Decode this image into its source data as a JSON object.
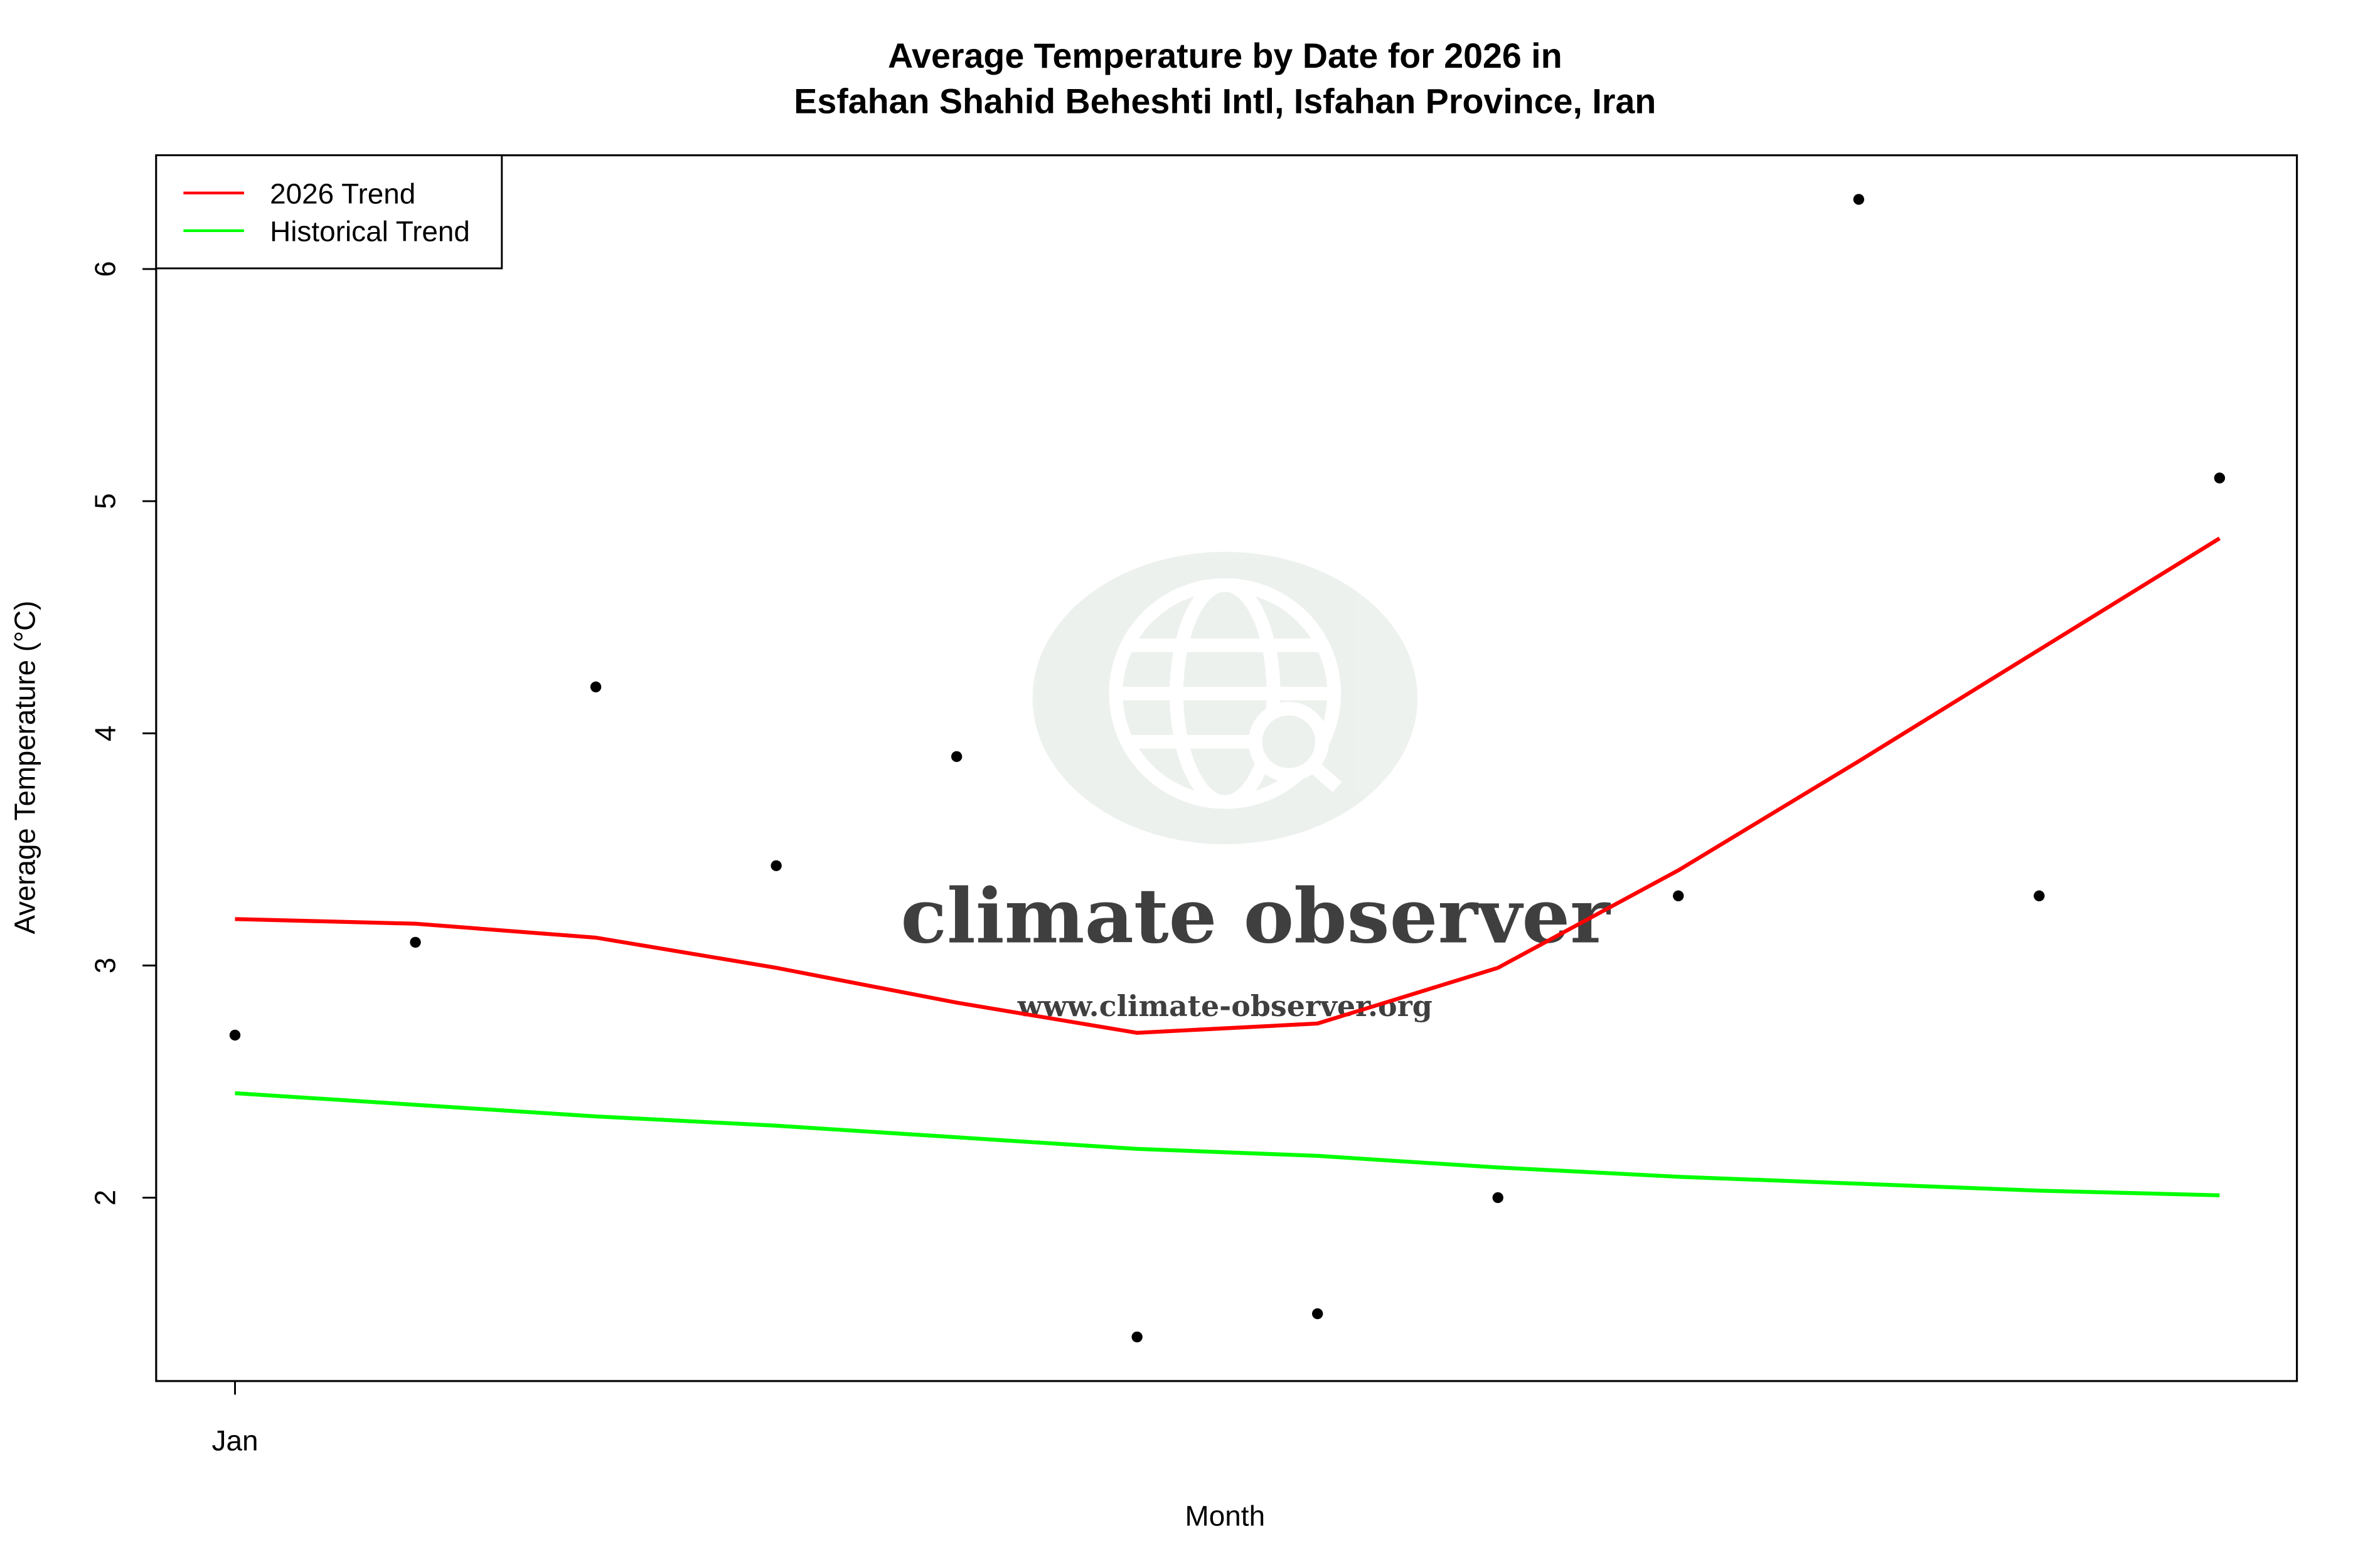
{
  "chart_data": {
    "type": "line",
    "title": "Average Temperature by Date for 2026 in",
    "subtitle": "Esfahan Shahid Beheshti Intl, Isfahan Province, Iran",
    "x_label": "Month",
    "y_label": "Average Temperature (°C)",
    "categories": [
      "Jan",
      null,
      null,
      null,
      null,
      null,
      null,
      null,
      null,
      null,
      null,
      null
    ],
    "points": {
      "color": "#000000",
      "values": [
        2.7,
        3.1,
        4.2,
        3.43,
        3.9,
        1.4,
        1.5,
        2.0,
        3.3,
        6.3,
        3.3,
        5.1
      ]
    },
    "series": [
      {
        "name": "2026 Trend",
        "color": "#ff0000",
        "values": [
          3.2,
          3.18,
          3.12,
          2.99,
          2.84,
          2.71,
          2.75,
          2.99,
          3.41,
          3.88,
          4.36,
          4.84
        ]
      },
      {
        "name": "Historical Trend",
        "color": "#00ff00",
        "values": [
          2.45,
          2.4,
          2.35,
          2.31,
          2.26,
          2.21,
          2.18,
          2.13,
          2.09,
          2.06,
          2.03,
          2.01
        ]
      }
    ],
    "ylim": [
      1.21,
      6.49
    ],
    "yticks": [
      2,
      3,
      4,
      5,
      6
    ],
    "legend": "top-left",
    "watermark": {
      "name": "climate observer",
      "url": "www.climate-observer.org"
    }
  }
}
